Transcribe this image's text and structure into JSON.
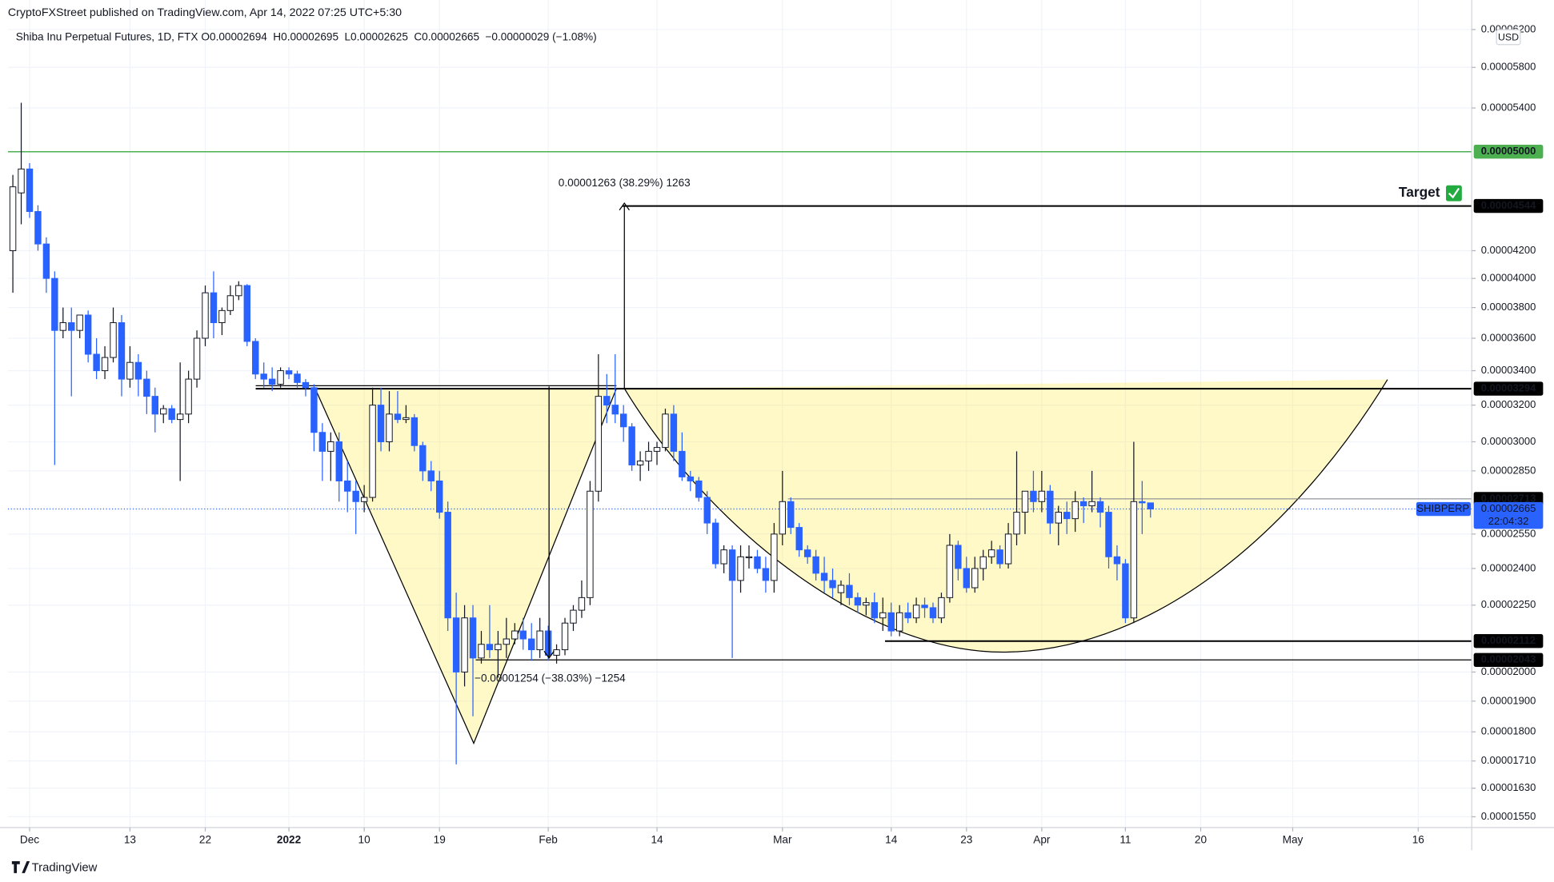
{
  "header": {
    "published": "CryptoFXStreet published on TradingView.com, Apr 14, 2022 07:25 UTC+5:30",
    "symbol": "Shiba Inu Perpetual Futures, 1D, FTX",
    "ohlc": [
      "O0.00002694",
      "H0.00002695",
      "L0.00002625",
      "C0.00002665",
      "−0.00000029 (−1.08%)"
    ],
    "currency": "USD"
  },
  "footer": "TradingView",
  "chart_data": {
    "type": "candlestick",
    "log_scale": true,
    "grid": true,
    "up_color": "#ffffff",
    "down_color": "#2962ff",
    "ylim": [
      1.521e-05,
      6.285e-05
    ],
    "yticks": [
      {
        "value": 6.2e-05,
        "label": "0.00006200"
      },
      {
        "value": 5.8e-05,
        "label": "0.00005800"
      },
      {
        "value": 5.4e-05,
        "label": "0.00005400"
      },
      {
        "value": 4.2e-05,
        "label": "0.00004200"
      },
      {
        "value": 4e-05,
        "label": "0.00004000"
      },
      {
        "value": 3.8e-05,
        "label": "0.00003800"
      },
      {
        "value": 3.6e-05,
        "label": "0.00003600"
      },
      {
        "value": 3.4e-05,
        "label": "0.00003400"
      },
      {
        "value": 3.2e-05,
        "label": "0.00003200"
      },
      {
        "value": 3e-05,
        "label": "0.00003000"
      },
      {
        "value": 2.85e-05,
        "label": "0.00002850"
      },
      {
        "value": 2.55e-05,
        "label": "0.00002550"
      },
      {
        "value": 2.4e-05,
        "label": "0.00002400"
      },
      {
        "value": 2.25e-05,
        "label": "0.00002250"
      },
      {
        "value": 2e-05,
        "label": "0.00002000"
      },
      {
        "value": 1.9e-05,
        "label": "0.00001900"
      },
      {
        "value": 1.8e-05,
        "label": "0.00001800"
      },
      {
        "value": 1.71e-05,
        "label": "0.00001710"
      },
      {
        "value": 1.63e-05,
        "label": "0.00001630"
      },
      {
        "value": 1.55e-05,
        "label": "0.00001550"
      }
    ],
    "xlim": [
      -0.59,
      174.4
    ],
    "xticks": [
      {
        "value": 2,
        "label": "Dec"
      },
      {
        "value": 14,
        "label": "13"
      },
      {
        "value": 23,
        "label": "22"
      },
      {
        "value": 33,
        "label": "2022"
      },
      {
        "value": 42,
        "label": "10"
      },
      {
        "value": 51,
        "label": "19"
      },
      {
        "value": 64,
        "label": "Feb"
      },
      {
        "value": 77,
        "label": "14"
      },
      {
        "value": 92,
        "label": "Mar"
      },
      {
        "value": 105,
        "label": "14"
      },
      {
        "value": 114,
        "label": "23"
      },
      {
        "value": 123,
        "label": "Apr"
      },
      {
        "value": 133,
        "label": "11"
      },
      {
        "value": 142,
        "label": "20"
      },
      {
        "value": 153,
        "label": "May"
      },
      {
        "value": 168,
        "label": "16"
      }
    ],
    "candles": [
      [
        4.2e-05,
        4.8e-05,
        3.9e-05,
        4.7e-05
      ],
      [
        4.65e-05,
        5.45e-05,
        4.4e-05,
        4.85e-05
      ],
      [
        4.85e-05,
        4.9e-05,
        4.45e-05,
        4.5e-05
      ],
      [
        4.5e-05,
        4.55e-05,
        4.2e-05,
        4.25e-05
      ],
      [
        4.25e-05,
        4.3e-05,
        3.9e-05,
        4e-05
      ],
      [
        4e-05,
        4.05e-05,
        2.88e-05,
        3.65e-05
      ],
      [
        3.65e-05,
        3.8e-05,
        3.6e-05,
        3.7e-05
      ],
      [
        3.7e-05,
        3.8e-05,
        3.25e-05,
        3.65e-05
      ],
      [
        3.65e-05,
        3.75e-05,
        3.6e-05,
        3.75e-05
      ],
      [
        3.75e-05,
        3.78e-05,
        3.45e-05,
        3.5e-05
      ],
      [
        3.5e-05,
        3.6e-05,
        3.35e-05,
        3.4e-05
      ],
      [
        3.4e-05,
        3.55e-05,
        3.35e-05,
        3.48e-05
      ],
      [
        3.48e-05,
        3.8e-05,
        3.45e-05,
        3.7e-05
      ],
      [
        3.7e-05,
        3.75e-05,
        3.25e-05,
        3.35e-05
      ],
      [
        3.35e-05,
        3.55e-05,
        3.3e-05,
        3.45e-05
      ],
      [
        3.45e-05,
        3.5e-05,
        3.25e-05,
        3.35e-05
      ],
      [
        3.35e-05,
        3.4e-05,
        3.15e-05,
        3.25e-05
      ],
      [
        3.25e-05,
        3.3e-05,
        3.05e-05,
        3.15e-05
      ],
      [
        3.15e-05,
        3.2e-05,
        3.1e-05,
        3.18e-05
      ],
      [
        3.18e-05,
        3.2e-05,
        3.1e-05,
        3.12e-05
      ],
      [
        3.12e-05,
        3.45e-05,
        2.8e-05,
        3.15e-05
      ],
      [
        3.15e-05,
        3.4e-05,
        3.1e-05,
        3.35e-05
      ],
      [
        3.35e-05,
        3.65e-05,
        3.3e-05,
        3.6e-05
      ],
      [
        3.6e-05,
        3.95e-05,
        3.55e-05,
        3.9e-05
      ],
      [
        3.9e-05,
        4.05e-05,
        3.6e-05,
        3.7e-05
      ],
      [
        3.7e-05,
        3.8e-05,
        3.62e-05,
        3.78e-05
      ],
      [
        3.78e-05,
        3.95e-05,
        3.75e-05,
        3.88e-05
      ],
      [
        3.88e-05,
        3.98e-05,
        3.85e-05,
        3.95e-05
      ],
      [
        3.95e-05,
        3.96e-05,
        3.55e-05,
        3.58e-05
      ],
      [
        3.58e-05,
        3.6e-05,
        3.35e-05,
        3.38e-05
      ],
      [
        3.38e-05,
        3.45e-05,
        3.3e-05,
        3.35e-05
      ],
      [
        3.35e-05,
        3.42e-05,
        3.28e-05,
        3.32e-05
      ],
      [
        3.32e-05,
        3.42e-05,
        3.3e-05,
        3.4e-05
      ],
      [
        3.4e-05,
        3.42e-05,
        3.35e-05,
        3.38e-05
      ],
      [
        3.38e-05,
        3.4e-05,
        3.3e-05,
        3.33e-05
      ],
      [
        3.33e-05,
        3.35e-05,
        3.25e-05,
        3.3e-05
      ],
      [
        3.3e-05,
        3.32e-05,
        2.95e-05,
        3.05e-05
      ],
      [
        3.05e-05,
        3.1e-05,
        2.8e-05,
        2.95e-05
      ],
      [
        2.95e-05,
        3.05e-05,
        2.8e-05,
        3e-05
      ],
      [
        3e-05,
        3.05e-05,
        2.7e-05,
        2.8e-05
      ],
      [
        2.8e-05,
        2.9e-05,
        2.65e-05,
        2.75e-05
      ],
      [
        2.75e-05,
        2.8e-05,
        2.55e-05,
        2.7e-05
      ],
      [
        2.7e-05,
        2.78e-05,
        2.65e-05,
        2.72e-05
      ],
      [
        2.72e-05,
        3.3e-05,
        2.7e-05,
        3.2e-05
      ],
      [
        3.2e-05,
        3.3e-05,
        2.95e-05,
        3e-05
      ],
      [
        3e-05,
        3.28e-05,
        2.95e-05,
        3.15e-05
      ],
      [
        3.15e-05,
        3.28e-05,
        3.1e-05,
        3.12e-05
      ],
      [
        3.12e-05,
        3.2e-05,
        3.1e-05,
        3.13e-05
      ],
      [
        3.13e-05,
        3.15e-05,
        2.95e-05,
        2.98e-05
      ],
      [
        2.98e-05,
        3e-05,
        2.8e-05,
        2.85e-05
      ],
      [
        2.85e-05,
        2.9e-05,
        2.75e-05,
        2.8e-05
      ],
      [
        2.8e-05,
        2.85e-05,
        2.62e-05,
        2.65e-05
      ],
      [
        2.65e-05,
        2.7e-05,
        2.15e-05,
        2.2e-05
      ],
      [
        2.2e-05,
        2.3e-05,
        1.7e-05,
        2e-05
      ],
      [
        2e-05,
        2.25e-05,
        1.95e-05,
        2.2e-05
      ],
      [
        2.2e-05,
        2.25e-05,
        1.85e-05,
        2.05e-05
      ],
      [
        2.05e-05,
        2.15e-05,
        2.03e-05,
        2.1e-05
      ],
      [
        2.1e-05,
        2.25e-05,
        2.05e-05,
        2.08e-05
      ],
      [
        2.08e-05,
        2.15e-05,
        1.98e-05,
        2.1e-05
      ],
      [
        2.1e-05,
        2.2e-05,
        2.05e-05,
        2.12e-05
      ],
      [
        2.12e-05,
        2.18e-05,
        2.1e-05,
        2.15e-05
      ],
      [
        2.15e-05,
        2.2e-05,
        2.08e-05,
        2.12e-05
      ],
      [
        2.12e-05,
        2.18e-05,
        2.04e-05,
        2.08e-05
      ],
      [
        2.08e-05,
        2.2e-05,
        2.05e-05,
        2.15e-05
      ],
      [
        2.15e-05,
        2.17e-05,
        2.04e-05,
        2.06e-05
      ],
      [
        2.06e-05,
        2.1e-05,
        2.03e-05,
        2.08e-05
      ],
      [
        2.08e-05,
        2.2e-05,
        2.06e-05,
        2.18e-05
      ],
      [
        2.18e-05,
        2.25e-05,
        2.15e-05,
        2.23e-05
      ],
      [
        2.23e-05,
        2.35e-05,
        2.2e-05,
        2.28e-05
      ],
      [
        2.28e-05,
        2.8e-05,
        2.25e-05,
        2.75e-05
      ],
      [
        2.75e-05,
        3.5e-05,
        2.7e-05,
        3.25e-05
      ],
      [
        3.25e-05,
        3.38e-05,
        3.1e-05,
        3.2e-05
      ],
      [
        3.2e-05,
        3.5e-05,
        3.1e-05,
        3.15e-05
      ],
      [
        3.15e-05,
        3.2e-05,
        3e-05,
        3.08e-05
      ],
      [
        3.08e-05,
        3.1e-05,
        2.85e-05,
        2.88e-05
      ],
      [
        2.88e-05,
        2.95e-05,
        2.8e-05,
        2.9e-05
      ],
      [
        2.9e-05,
        3e-05,
        2.85e-05,
        2.95e-05
      ],
      [
        2.95e-05,
        3e-05,
        2.88e-05,
        2.97e-05
      ],
      [
        2.97e-05,
        3.18e-05,
        2.95e-05,
        3.15e-05
      ],
      [
        3.15e-05,
        3.2e-05,
        2.9e-05,
        2.95e-05
      ],
      [
        2.95e-05,
        3.05e-05,
        2.8e-05,
        2.82e-05
      ],
      [
        2.82e-05,
        2.85e-05,
        2.75e-05,
        2.8e-05
      ],
      [
        2.8e-05,
        2.82e-05,
        2.7e-05,
        2.72e-05
      ],
      [
        2.72e-05,
        2.75e-05,
        2.55e-05,
        2.6e-05
      ],
      [
        2.6e-05,
        2.62e-05,
        2.4e-05,
        2.42e-05
      ],
      [
        2.42e-05,
        2.5e-05,
        2.38e-05,
        2.48e-05
      ],
      [
        2.48e-05,
        2.5e-05,
        2.05e-05,
        2.35e-05
      ],
      [
        2.35e-05,
        2.5e-05,
        2.3e-05,
        2.45e-05
      ],
      [
        2.45e-05,
        2.5e-05,
        2.4e-05,
        2.45e-05
      ],
      [
        2.45e-05,
        2.48e-05,
        2.38e-05,
        2.4e-05
      ],
      [
        2.4e-05,
        2.45e-05,
        2.3e-05,
        2.35e-05
      ],
      [
        2.35e-05,
        2.6e-05,
        2.3e-05,
        2.55e-05
      ],
      [
        2.55e-05,
        2.85e-05,
        2.5e-05,
        2.7e-05
      ],
      [
        2.7e-05,
        2.72e-05,
        2.55e-05,
        2.58e-05
      ],
      [
        2.58e-05,
        2.6e-05,
        2.45e-05,
        2.48e-05
      ],
      [
        2.48e-05,
        2.5e-05,
        2.42e-05,
        2.45e-05
      ],
      [
        2.45e-05,
        2.48e-05,
        2.35e-05,
        2.38e-05
      ],
      [
        2.38e-05,
        2.45e-05,
        2.3e-05,
        2.35e-05
      ],
      [
        2.35e-05,
        2.4e-05,
        2.28e-05,
        2.32e-05
      ],
      [
        2.3e-05,
        2.35e-05,
        2.25e-05,
        2.33e-05
      ],
      [
        2.33e-05,
        2.38e-05,
        2.25e-05,
        2.28e-05
      ],
      [
        2.28e-05,
        2.3e-05,
        2.22e-05,
        2.25e-05
      ],
      [
        2.25e-05,
        2.28e-05,
        2.21e-05,
        2.26e-05
      ],
      [
        2.26e-05,
        2.3e-05,
        2.18e-05,
        2.2e-05
      ],
      [
        2.2e-05,
        2.28e-05,
        2.15e-05,
        2.22e-05
      ],
      [
        2.22e-05,
        2.26e-05,
        2.13e-05,
        2.15e-05
      ],
      [
        2.15e-05,
        2.25e-05,
        2.13e-05,
        2.22e-05
      ],
      [
        2.22e-05,
        2.26e-05,
        2.18e-05,
        2.2e-05
      ],
      [
        2.2e-05,
        2.28e-05,
        2.18e-05,
        2.25e-05
      ],
      [
        2.25e-05,
        2.28e-05,
        2.2e-05,
        2.24e-05
      ],
      [
        2.24e-05,
        2.26e-05,
        2.18e-05,
        2.2e-05
      ],
      [
        2.2e-05,
        2.3e-05,
        2.18e-05,
        2.28e-05
      ],
      [
        2.28e-05,
        2.55e-05,
        2.26e-05,
        2.5e-05
      ],
      [
        2.5e-05,
        2.52e-05,
        2.35e-05,
        2.4e-05
      ],
      [
        2.4e-05,
        2.45e-05,
        2.3e-05,
        2.32e-05
      ],
      [
        2.32e-05,
        2.45e-05,
        2.3e-05,
        2.4e-05
      ],
      [
        2.4e-05,
        2.48e-05,
        2.35e-05,
        2.45e-05
      ],
      [
        2.45e-05,
        2.52e-05,
        2.42e-05,
        2.48e-05
      ],
      [
        2.48e-05,
        2.5e-05,
        2.4e-05,
        2.42e-05
      ],
      [
        2.42e-05,
        2.6e-05,
        2.4e-05,
        2.55e-05
      ],
      [
        2.55e-05,
        2.95e-05,
        2.5e-05,
        2.65e-05
      ],
      [
        2.65e-05,
        2.75e-05,
        2.55e-05,
        2.75e-05
      ],
      [
        2.75e-05,
        2.85e-05,
        2.65e-05,
        2.7e-05
      ],
      [
        2.7e-05,
        2.85e-05,
        2.65e-05,
        2.75e-05
      ],
      [
        2.75e-05,
        2.78e-05,
        2.55e-05,
        2.6e-05
      ],
      [
        2.6e-05,
        2.68e-05,
        2.5e-05,
        2.65e-05
      ],
      [
        2.65e-05,
        2.7e-05,
        2.55e-05,
        2.62e-05
      ],
      [
        2.62e-05,
        2.75e-05,
        2.56e-05,
        2.7e-05
      ],
      [
        2.7e-05,
        2.72e-05,
        2.6e-05,
        2.68e-05
      ],
      [
        2.68e-05,
        2.85e-05,
        2.65e-05,
        2.7e-05
      ],
      [
        2.7e-05,
        2.72e-05,
        2.58e-05,
        2.65e-05
      ],
      [
        2.65e-05,
        2.68e-05,
        2.4e-05,
        2.45e-05
      ],
      [
        2.45e-05,
        2.5e-05,
        2.35e-05,
        2.42e-05
      ],
      [
        2.42e-05,
        2.44e-05,
        2.18e-05,
        2.2e-05
      ],
      [
        2.2e-05,
        3e-05,
        2.18e-05,
        2.7e-05
      ],
      [
        2.7e-05,
        2.8e-05,
        2.55e-05,
        2.694e-05
      ],
      [
        2.694e-05,
        2.695e-05,
        2.625e-05,
        2.665e-05
      ]
    ],
    "levels": [
      {
        "value": 5e-05,
        "label": "0.00005000",
        "color": "#4caf50"
      },
      {
        "value": 4.544e-05,
        "label": "0.00004544",
        "color": "#000000"
      },
      {
        "value": 3.294e-05,
        "label": "0.00003294",
        "color": "#000000"
      },
      {
        "value": 2.713e-05,
        "label": "0.00002713",
        "color": "#000000"
      },
      {
        "value": 2.112e-05,
        "label": "0.00002112",
        "color": "#000000"
      },
      {
        "value": 2.043e-05,
        "label": "0.00002043",
        "color": "#000000"
      }
    ],
    "last_price": {
      "value": 2.665e-05,
      "label": "0.00002665",
      "symbol": "SHIBPERP",
      "countdown": "22:04:32",
      "color": "#2962ff"
    },
    "annotations": {
      "target": "Target",
      "measure_up": "0.00001263 (38.29%) 1263",
      "measure_down": "−0.00001254 (−38.03%) −1254"
    }
  }
}
